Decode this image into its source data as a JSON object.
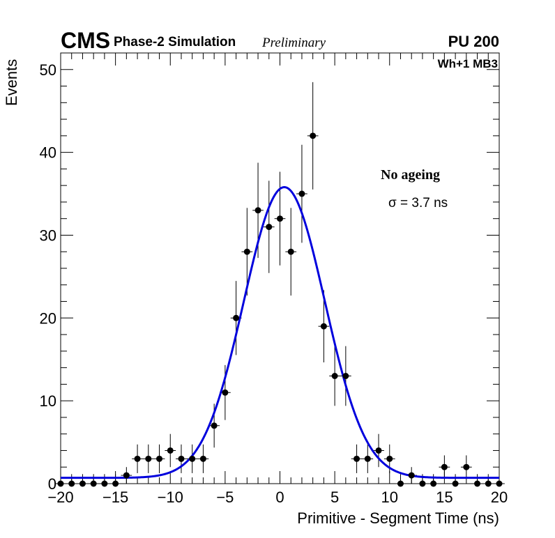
{
  "header": {
    "cms_logo": "CMS",
    "simulation_label": "Phase-2 Simulation",
    "preliminary_label": "Preliminary",
    "pileup_label": "PU 200",
    "station_label": "Wh+1 MB3"
  },
  "annotations": {
    "ageing": "No ageing",
    "sigma": "σ = 3.7 ns"
  },
  "colors": {
    "fit_curve": "#0000dd",
    "markers": "#000000"
  },
  "chart_data": {
    "type": "scatter",
    "title": "",
    "xlabel": "Primitive - Segment Time (ns)",
    "ylabel": "Events",
    "xlim": [
      -20,
      20
    ],
    "ylim": [
      0,
      52
    ],
    "x_ticks": [
      -20,
      -15,
      -10,
      -5,
      0,
      5,
      10,
      15,
      20
    ],
    "x_tick_labels": [
      "−20",
      "−15",
      "−10",
      "−5",
      "0",
      "5",
      "10",
      "15",
      "20"
    ],
    "y_ticks": [
      0,
      10,
      20,
      30,
      40,
      50
    ],
    "y_tick_labels": [
      "0",
      "10",
      "20",
      "30",
      "40",
      "50"
    ],
    "bin_width": 1,
    "series": [
      {
        "name": "Data",
        "style": "points-with-errors",
        "x": [
          -20,
          -19,
          -18,
          -17,
          -16,
          -15,
          -14,
          -13,
          -12,
          -11,
          -10,
          -9,
          -8,
          -7,
          -6,
          -5,
          -4,
          -3,
          -2,
          -1,
          0,
          1,
          2,
          3,
          4,
          5,
          6,
          7,
          8,
          9,
          10,
          11,
          12,
          13,
          14,
          15,
          16,
          17,
          18,
          19,
          20
        ],
        "y": [
          0,
          0,
          0,
          0,
          0,
          0,
          1,
          3,
          3,
          3,
          4,
          3,
          3,
          3,
          7,
          11,
          20,
          28,
          33,
          31,
          32,
          28,
          35,
          42,
          19,
          13,
          13,
          3,
          3,
          4,
          3,
          0,
          1,
          0,
          0,
          2,
          0,
          2,
          0,
          0,
          0
        ]
      },
      {
        "name": "Gaussian fit",
        "style": "line",
        "mean": 0.4,
        "sigma": 3.7,
        "amplitude": 35.1,
        "constant": 0.7
      }
    ]
  }
}
